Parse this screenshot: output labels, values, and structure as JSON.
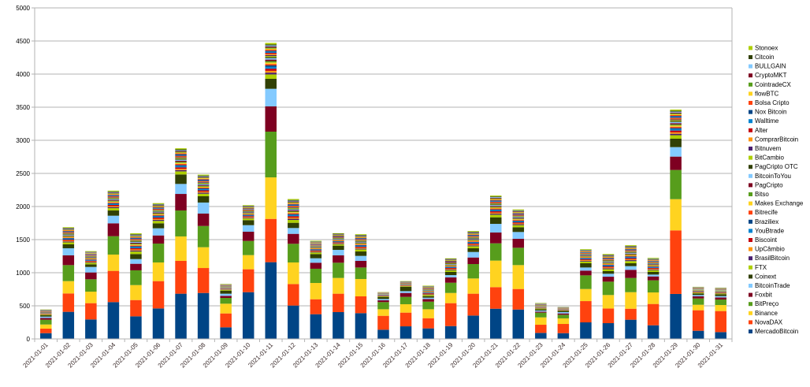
{
  "chart_data": {
    "type": "bar",
    "stacked": true,
    "title": "",
    "xlabel": "",
    "ylabel": "",
    "ylim": [
      0,
      5000
    ],
    "yticks": [
      0,
      500,
      1000,
      1500,
      2000,
      2500,
      3000,
      3500,
      4000,
      4500,
      5000
    ],
    "grid": true,
    "legend_position": "right",
    "colors": [
      "#004586",
      "#ff420e",
      "#ffd320",
      "#579d1c",
      "#7e0021",
      "#83caff",
      "#314004",
      "#aecf00",
      "#4b1f6f",
      "#ff950e",
      "#c5000b",
      "#0084d1"
    ],
    "categories": [
      "2021-01-01",
      "2021-01-02",
      "2021-01-03",
      "2021-01-04",
      "2021-01-05",
      "2021-01-06",
      "2021-01-07",
      "2021-01-08",
      "2021-01-09",
      "2021-01-10",
      "2021-01-11",
      "2021-01-12",
      "2021-01-13",
      "2021-01-14",
      "2021-01-15",
      "2021-01-16",
      "2021-01-17",
      "2021-01-18",
      "2021-01-19",
      "2021-01-20",
      "2021-01-21",
      "2021-01-22",
      "2021-01-23",
      "2021-01-24",
      "2021-01-25",
      "2021-01-26",
      "2021-01-27",
      "2021-01-28",
      "2021-01-29",
      "2021-01-30",
      "2021-01-31"
    ],
    "series": [
      {
        "name": "MercadoBitcoin",
        "values": [
          87,
          409,
          294,
          556,
          341,
          460,
          683,
          694,
          175,
          706,
          1159,
          504,
          373,
          405,
          389,
          139,
          190,
          159,
          194,
          353,
          456,
          444,
          91,
          87,
          250,
          238,
          290,
          206,
          679,
          123,
          103
        ]
      },
      {
        "name": "NovaDAX",
        "values": [
          68,
          278,
          246,
          472,
          246,
          413,
          496,
          377,
          210,
          346,
          654,
          325,
          226,
          278,
          254,
          210,
          207,
          154,
          346,
          330,
          326,
          310,
          123,
          139,
          321,
          222,
          166,
          322,
          960,
          310,
          318
        ]
      },
      {
        "name": "Binance",
        "values": [
          63,
          186,
          174,
          246,
          226,
          282,
          369,
          314,
          147,
          214,
          627,
          326,
          246,
          238,
          262,
          99,
          127,
          135,
          154,
          230,
          401,
          361,
          111,
          84,
          183,
          203,
          250,
          174,
          472,
          83,
          91
        ]
      },
      {
        "name": "BitPreço",
        "values": [
          72,
          242,
          187,
          278,
          223,
          285,
          392,
          321,
          87,
          214,
          691,
          282,
          215,
          230,
          174,
          108,
          111,
          115,
          155,
          218,
          261,
          262,
          72,
          55,
          206,
          202,
          215,
          183,
          441,
          95,
          83
        ]
      },
      {
        "name": "Foxbit",
        "values": [
          27,
          147,
          103,
          194,
          99,
          123,
          250,
          187,
          32,
          139,
          381,
          150,
          91,
          111,
          100,
          27,
          59,
          40,
          80,
          99,
          163,
          135,
          16,
          20,
          72,
          75,
          123,
          59,
          202,
          32,
          32
        ]
      },
      {
        "name": "BitcoinTrade",
        "values": [
          20,
          107,
          83,
          115,
          71,
          108,
          151,
          167,
          32,
          99,
          266,
          88,
          67,
          83,
          75,
          20,
          28,
          20,
          35,
          83,
          131,
          103,
          16,
          20,
          47,
          44,
          55,
          28,
          143,
          20,
          20
        ]
      },
      {
        "name": "Coinext",
        "values": [
          20,
          60,
          40,
          79,
          76,
          75,
          143,
          95,
          47,
          76,
          151,
          79,
          64,
          64,
          67,
          32,
          64,
          24,
          48,
          56,
          99,
          72,
          19,
          20,
          64,
          40,
          44,
          40,
          127,
          24,
          28
        ]
      },
      {
        "name": "FTX",
        "values": [
          10,
          30,
          23,
          36,
          38,
          37,
          47,
          38,
          12,
          26,
          66,
          43,
          24,
          22,
          31,
          9,
          10,
          18,
          25,
          31,
          39,
          32,
          11,
          6,
          26,
          30,
          33,
          26,
          53,
          12,
          12
        ]
      },
      {
        "name": "BrasilBitcoin",
        "values": [
          4,
          13,
          10,
          15,
          16,
          16,
          19,
          16,
          5,
          11,
          27,
          18,
          10,
          9,
          13,
          4,
          4,
          8,
          11,
          13,
          16,
          13,
          4,
          3,
          11,
          13,
          14,
          11,
          22,
          5,
          5
        ]
      },
      {
        "name": "UpCâmbio",
        "values": [
          4,
          13,
          10,
          15,
          16,
          16,
          19,
          16,
          5,
          11,
          27,
          18,
          10,
          9,
          13,
          4,
          4,
          8,
          11,
          13,
          16,
          13,
          4,
          3,
          11,
          13,
          14,
          11,
          22,
          5,
          5
        ]
      },
      {
        "name": "Biscoint",
        "values": [
          5,
          15,
          12,
          18,
          19,
          19,
          23,
          19,
          6,
          13,
          33,
          21,
          12,
          11,
          16,
          5,
          5,
          9,
          13,
          16,
          20,
          16,
          5,
          3,
          13,
          15,
          16,
          13,
          26,
          6,
          6
        ]
      },
      {
        "name": "YouBtrade",
        "values": [
          4,
          13,
          10,
          15,
          16,
          16,
          19,
          16,
          5,
          11,
          27,
          18,
          10,
          9,
          13,
          4,
          4,
          8,
          11,
          13,
          16,
          13,
          4,
          3,
          11,
          13,
          14,
          11,
          22,
          5,
          5
        ]
      },
      {
        "name": "Braziliex",
        "values": [
          3,
          10,
          8,
          12,
          13,
          12,
          16,
          13,
          4,
          9,
          22,
          14,
          8,
          7,
          10,
          3,
          3,
          6,
          8,
          10,
          13,
          11,
          4,
          2,
          9,
          10,
          11,
          9,
          18,
          4,
          4
        ]
      },
      {
        "name": "Bitrecife",
        "values": [
          3,
          10,
          8,
          12,
          13,
          12,
          16,
          13,
          4,
          9,
          22,
          14,
          8,
          7,
          10,
          3,
          3,
          6,
          8,
          10,
          13,
          11,
          4,
          2,
          9,
          10,
          11,
          9,
          18,
          4,
          4
        ]
      },
      {
        "name": "Makes Exchange",
        "values": [
          3,
          10,
          8,
          12,
          13,
          12,
          16,
          13,
          4,
          9,
          22,
          14,
          8,
          7,
          10,
          3,
          3,
          6,
          8,
          10,
          13,
          11,
          4,
          2,
          9,
          10,
          11,
          9,
          18,
          4,
          4
        ]
      },
      {
        "name": "Bitso",
        "values": [
          3,
          10,
          8,
          12,
          13,
          12,
          16,
          13,
          4,
          9,
          22,
          14,
          8,
          7,
          10,
          3,
          3,
          6,
          8,
          10,
          13,
          11,
          4,
          2,
          9,
          10,
          11,
          9,
          18,
          4,
          4
        ]
      },
      {
        "name": "PagCripto",
        "values": [
          3,
          10,
          8,
          12,
          13,
          12,
          16,
          13,
          4,
          9,
          22,
          14,
          8,
          7,
          10,
          3,
          3,
          6,
          8,
          10,
          13,
          11,
          4,
          2,
          9,
          10,
          11,
          9,
          18,
          4,
          4
        ]
      },
      {
        "name": "BitcoinToYou",
        "values": [
          3,
          10,
          8,
          12,
          13,
          12,
          16,
          13,
          4,
          9,
          22,
          14,
          8,
          7,
          10,
          3,
          3,
          6,
          8,
          10,
          13,
          11,
          4,
          2,
          9,
          10,
          11,
          9,
          18,
          4,
          4
        ]
      },
      {
        "name": "PagCripto OTC",
        "values": [
          3,
          8,
          6,
          9,
          9,
          9,
          12,
          10,
          3,
          7,
          16,
          11,
          6,
          6,
          8,
          2,
          3,
          5,
          6,
          8,
          10,
          8,
          3,
          2,
          6,
          8,
          8,
          6,
          13,
          3,
          3
        ]
      },
      {
        "name": "BitCambio",
        "values": [
          3,
          8,
          6,
          9,
          9,
          9,
          12,
          10,
          3,
          7,
          16,
          11,
          6,
          6,
          8,
          2,
          3,
          5,
          6,
          8,
          10,
          8,
          3,
          2,
          6,
          8,
          8,
          6,
          13,
          3,
          3
        ]
      },
      {
        "name": "Bitnuvem",
        "values": [
          3,
          8,
          6,
          9,
          9,
          9,
          12,
          10,
          3,
          7,
          16,
          11,
          6,
          6,
          8,
          2,
          3,
          5,
          6,
          8,
          10,
          8,
          3,
          2,
          6,
          8,
          8,
          6,
          13,
          3,
          3
        ]
      },
      {
        "name": "ComprarBitcoin",
        "values": [
          3,
          8,
          6,
          9,
          9,
          9,
          12,
          10,
          3,
          7,
          16,
          11,
          6,
          6,
          8,
          2,
          3,
          5,
          6,
          8,
          10,
          8,
          3,
          2,
          6,
          8,
          8,
          6,
          13,
          3,
          3
        ]
      },
      {
        "name": "Alter",
        "values": [
          3,
          8,
          6,
          9,
          9,
          9,
          12,
          10,
          3,
          7,
          16,
          11,
          6,
          6,
          8,
          2,
          3,
          5,
          6,
          8,
          10,
          8,
          3,
          2,
          6,
          8,
          8,
          6,
          13,
          3,
          3
        ]
      },
      {
        "name": "Walltime",
        "values": [
          3,
          8,
          6,
          9,
          9,
          9,
          12,
          10,
          3,
          7,
          16,
          11,
          6,
          6,
          8,
          2,
          3,
          5,
          6,
          8,
          10,
          8,
          3,
          2,
          6,
          8,
          8,
          6,
          13,
          3,
          3
        ]
      },
      {
        "name": "Nox Bitcoin",
        "values": [
          3,
          8,
          6,
          9,
          9,
          9,
          12,
          10,
          3,
          7,
          16,
          11,
          6,
          6,
          8,
          2,
          3,
          5,
          6,
          8,
          10,
          8,
          3,
          2,
          6,
          8,
          8,
          6,
          13,
          3,
          3
        ]
      },
      {
        "name": "Bolsa Cripto",
        "values": [
          3,
          8,
          6,
          9,
          9,
          9,
          12,
          10,
          3,
          7,
          16,
          11,
          6,
          6,
          8,
          2,
          3,
          5,
          6,
          8,
          10,
          8,
          3,
          2,
          6,
          8,
          8,
          6,
          13,
          3,
          3
        ]
      },
      {
        "name": "flowBTC",
        "values": [
          3,
          8,
          6,
          9,
          9,
          9,
          12,
          10,
          3,
          7,
          16,
          11,
          6,
          6,
          8,
          2,
          3,
          5,
          6,
          8,
          10,
          8,
          3,
          2,
          6,
          8,
          8,
          6,
          13,
          3,
          3
        ]
      },
      {
        "name": "CointradeCX",
        "values": [
          3,
          8,
          6,
          9,
          9,
          9,
          12,
          10,
          3,
          7,
          16,
          11,
          6,
          6,
          8,
          2,
          3,
          5,
          6,
          8,
          10,
          8,
          3,
          2,
          6,
          8,
          8,
          6,
          13,
          3,
          3
        ]
      },
      {
        "name": "CryptoMKT",
        "values": [
          3,
          8,
          6,
          9,
          9,
          9,
          12,
          10,
          3,
          7,
          16,
          11,
          6,
          6,
          8,
          2,
          3,
          5,
          6,
          8,
          10,
          8,
          3,
          2,
          6,
          8,
          8,
          6,
          13,
          3,
          3
        ]
      },
      {
        "name": "BULLGAIN",
        "values": [
          3,
          8,
          6,
          9,
          9,
          9,
          12,
          10,
          3,
          7,
          16,
          11,
          6,
          6,
          8,
          2,
          3,
          5,
          6,
          8,
          10,
          8,
          3,
          2,
          6,
          8,
          8,
          6,
          13,
          3,
          3
        ]
      },
      {
        "name": "Citcoin",
        "values": [
          3,
          8,
          6,
          9,
          9,
          9,
          12,
          10,
          3,
          7,
          16,
          11,
          6,
          6,
          8,
          2,
          3,
          5,
          6,
          8,
          10,
          8,
          3,
          2,
          6,
          8,
          8,
          6,
          13,
          3,
          3
        ]
      },
      {
        "name": "Stonoex",
        "values": [
          3,
          10,
          8,
          12,
          13,
          12,
          16,
          13,
          4,
          9,
          22,
          14,
          8,
          7,
          10,
          3,
          3,
          6,
          8,
          10,
          13,
          11,
          4,
          2,
          9,
          10,
          11,
          9,
          18,
          4,
          4
        ]
      }
    ]
  }
}
